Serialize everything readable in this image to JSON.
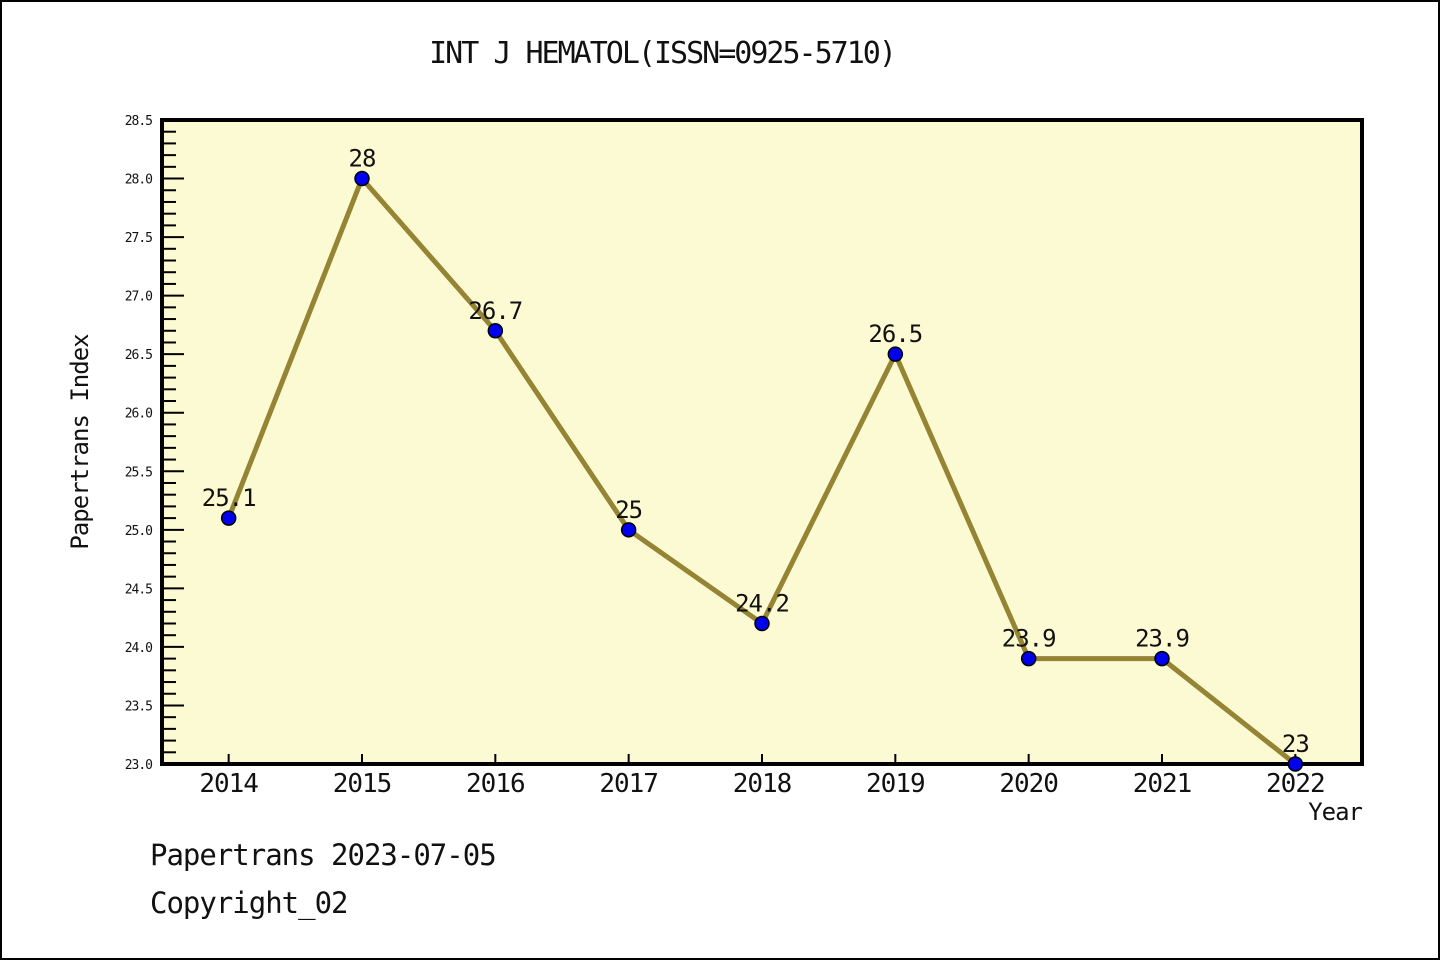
{
  "footer": {
    "line1": "Papertrans 2023-07-05",
    "line2": "Copyright_02"
  },
  "chart_data": {
    "type": "line",
    "title": "INT J HEMATOL(ISSN=0925-5710)",
    "xlabel": "Year",
    "ylabel": "Papertrans Index",
    "x": [
      2014,
      2015,
      2016,
      2017,
      2018,
      2019,
      2020,
      2021,
      2022
    ],
    "values": [
      25.1,
      28,
      26.7,
      25,
      24.2,
      26.5,
      23.9,
      23.9,
      23
    ],
    "point_labels": [
      "25.1",
      "28",
      "26.7",
      "25",
      "24.2",
      "26.5",
      "23.9",
      "23.9",
      "23"
    ],
    "xtick_labels": [
      "2014",
      "2015",
      "2016",
      "2017",
      "2018",
      "2019",
      "2020",
      "2021",
      "2022"
    ],
    "ytick_labels": [
      "23.0",
      "23.5",
      "24.0",
      "24.5",
      "25.0",
      "25.5",
      "26.0",
      "26.5",
      "27.0",
      "27.5",
      "28.0",
      "28.5"
    ],
    "xlim": [
      2013.5,
      2022.5
    ],
    "ylim": [
      23.0,
      28.5
    ],
    "ytick_minor_step": 0.1,
    "grid": false,
    "legend": null,
    "colors": {
      "line": "#948434",
      "marker": "#0000EE",
      "marker_edge": "#000000",
      "plot_bg": "#FCFAD2",
      "axis": "#000000",
      "text": "#111111"
    }
  }
}
